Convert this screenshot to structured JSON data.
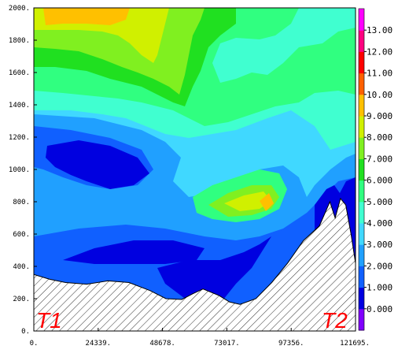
{
  "chart_data": {
    "type": "contour",
    "title": "",
    "xlabel": "",
    "ylabel": "",
    "xlim": [
      0,
      121695
    ],
    "ylim": [
      0,
      2000
    ],
    "x_ticks": [
      "0.",
      "24339.",
      "48678.",
      "73017.",
      "97356.",
      "121695."
    ],
    "y_ticks": [
      "0.",
      "200.",
      "400.",
      "600.",
      "800.",
      "1000.",
      "1200.",
      "1400.",
      "1600.",
      "1800.",
      "2000."
    ],
    "colorbar": {
      "levels": [
        "0.000",
        "1.000",
        "2.000",
        "3.000",
        "4.000",
        "5.000",
        "6.000",
        "7.000",
        "8.000",
        "9.000",
        "10.00",
        "11.00",
        "12.00",
        "13.00"
      ],
      "colors": [
        "#8000ff",
        "#0000e0",
        "#1060ff",
        "#20a0ff",
        "#40d8ff",
        "#40ffd0",
        "#30ff80",
        "#20e020",
        "#80f020",
        "#d0f000",
        "#ffc000",
        "#ff6000",
        "#ff0000",
        "#ff0080",
        "#ff00ff"
      ]
    },
    "end_labels": [
      "T1",
      "T2"
    ],
    "terrain_profile": {
      "x": [
        0,
        6000,
        12000,
        20000,
        28000,
        36000,
        44000,
        50000,
        56000,
        60000,
        64000,
        70000,
        74000,
        78000,
        84000,
        90000,
        96000,
        102000,
        108000,
        112000,
        114000,
        116000,
        118000,
        120000,
        121695
      ],
      "y": [
        350,
        320,
        300,
        290,
        310,
        300,
        250,
        200,
        195,
        230,
        260,
        220,
        180,
        165,
        200,
        300,
        420,
        560,
        650,
        800,
        700,
        820,
        780,
        600,
        420
      ]
    }
  }
}
